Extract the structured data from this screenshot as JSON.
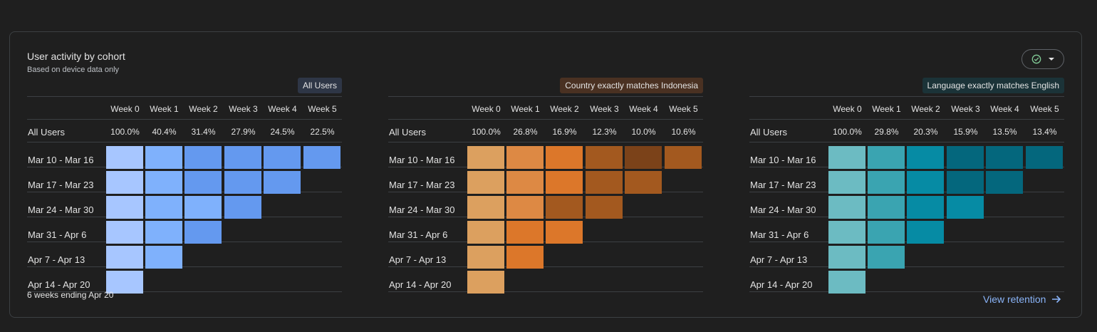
{
  "card": {
    "title": "User activity by cohort",
    "subtitle": "Based on device data only",
    "footer_note": "6 weeks ending Apr 20",
    "view_link": "View retention"
  },
  "columns": [
    "Week 0",
    "Week 1",
    "Week 2",
    "Week 3",
    "Week 4",
    "Week 5"
  ],
  "row_labels": [
    "All Users",
    "Mar 10 - Mar 16",
    "Mar 17 - Mar 23",
    "Mar 24 - Mar 30",
    "Mar 31 - Apr 6",
    "Apr 7 - Apr 13",
    "Apr 14 - Apr 20"
  ],
  "panels": [
    {
      "tag": "All Users",
      "tag_bg": "#2e3646",
      "totals": [
        "100.0%",
        "40.4%",
        "31.4%",
        "27.9%",
        "24.5%",
        "22.5%"
      ],
      "palette": [
        "#a7c6ff",
        "#7fb1fc",
        "#6da3f6",
        "#6499ef"
      ],
      "grid": [
        [
          0,
          1,
          3,
          3,
          3,
          3
        ],
        [
          0,
          1,
          3,
          3,
          3
        ],
        [
          0,
          1,
          1,
          3
        ],
        [
          0,
          1,
          3
        ],
        [
          0,
          1
        ],
        [
          0
        ]
      ]
    },
    {
      "tag": "Country exactly matches Indonesia",
      "tag_bg": "#4a3122",
      "totals": [
        "100.0%",
        "26.8%",
        "16.9%",
        "12.3%",
        "10.0%",
        "10.6%"
      ],
      "palette": [
        "#dca05f",
        "#dd8944",
        "#dc772a",
        "#a3591f",
        "#7b4219"
      ],
      "grid": [
        [
          0,
          1,
          2,
          3,
          4,
          3
        ],
        [
          0,
          1,
          2,
          3,
          3
        ],
        [
          0,
          1,
          3,
          3
        ],
        [
          0,
          2,
          2
        ],
        [
          0,
          2
        ],
        [
          0
        ]
      ]
    },
    {
      "tag": "Language exactly matches English",
      "tag_bg": "#1b3338",
      "totals": [
        "100.0%",
        "29.8%",
        "20.3%",
        "15.9%",
        "13.5%",
        "13.4%"
      ],
      "palette": [
        "#6cbbc2",
        "#3aa4b1",
        "#068ba4",
        "#04677d"
      ],
      "grid": [
        [
          0,
          1,
          2,
          3,
          3,
          3
        ],
        [
          0,
          1,
          2,
          3,
          3
        ],
        [
          0,
          1,
          2,
          2
        ],
        [
          0,
          1,
          2
        ],
        [
          0,
          1
        ],
        [
          0
        ]
      ]
    }
  ]
}
